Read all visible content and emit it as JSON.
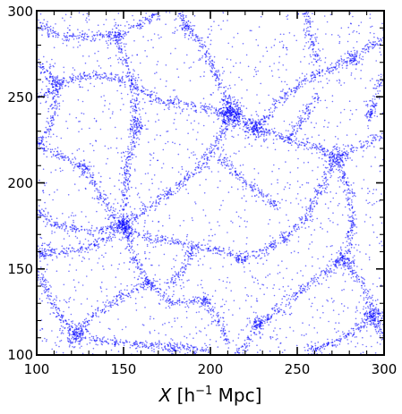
{
  "chart_data": {
    "type": "scatter",
    "xlabel": {
      "symbol": "X",
      "unit_prefix": "[h",
      "unit_exponent": "−1",
      "unit_suffix": " Mpc]"
    },
    "ylabel": "",
    "xlim": [
      100,
      300
    ],
    "ylim": [
      100,
      300
    ],
    "x_ticks": [
      "100",
      "150",
      "200",
      "250",
      "300"
    ],
    "y_ticks": [
      "100",
      "150",
      "200",
      "250",
      "300"
    ],
    "grid": false,
    "legend": "none",
    "marker_color": "#0000ff",
    "clusters": [
      {
        "x": 212,
        "y": 240,
        "sigma": 6,
        "weight": 260
      },
      {
        "x": 226,
        "y": 232,
        "sigma": 5,
        "weight": 120
      },
      {
        "x": 150,
        "y": 175,
        "sigma": 5,
        "weight": 110
      },
      {
        "x": 273,
        "y": 215,
        "sigma": 5,
        "weight": 80
      },
      {
        "x": 294,
        "y": 122,
        "sigma": 6,
        "weight": 120
      },
      {
        "x": 277,
        "y": 156,
        "sigma": 5,
        "weight": 70
      },
      {
        "x": 122,
        "y": 112,
        "sigma": 6,
        "weight": 110
      },
      {
        "x": 228,
        "y": 118,
        "sigma": 4,
        "weight": 60
      },
      {
        "x": 112,
        "y": 258,
        "sigma": 4,
        "weight": 50
      },
      {
        "x": 282,
        "y": 272,
        "sigma": 4,
        "weight": 50
      },
      {
        "x": 158,
        "y": 232,
        "sigma": 4,
        "weight": 50
      },
      {
        "x": 186,
        "y": 291,
        "sigma": 3,
        "weight": 35
      },
      {
        "x": 106,
        "y": 160,
        "sigma": 4,
        "weight": 40
      },
      {
        "x": 146,
        "y": 286,
        "sigma": 4,
        "weight": 40
      },
      {
        "x": 197,
        "y": 132,
        "sigma": 3,
        "weight": 30
      },
      {
        "x": 128,
        "y": 208,
        "sigma": 3,
        "weight": 30
      },
      {
        "x": 179,
        "y": 104,
        "sigma": 3,
        "weight": 30
      },
      {
        "x": 258,
        "y": 103,
        "sigma": 3,
        "weight": 25
      },
      {
        "x": 165,
        "y": 142,
        "sigma": 3,
        "weight": 30
      },
      {
        "x": 243,
        "y": 168,
        "sigma": 3,
        "weight": 20
      },
      {
        "x": 218,
        "y": 156,
        "sigma": 3,
        "weight": 25
      },
      {
        "x": 292,
        "y": 238,
        "sigma": 3,
        "weight": 25
      }
    ],
    "filaments": [
      [
        [
          100,
          250
        ],
        [
          115,
          258
        ],
        [
          128,
          262
        ],
        [
          145,
          262
        ],
        [
          158,
          255
        ],
        [
          170,
          248
        ]
      ],
      [
        [
          170,
          248
        ],
        [
          190,
          245
        ],
        [
          212,
          240
        ],
        [
          226,
          232
        ],
        [
          245,
          225
        ]
      ],
      [
        [
          212,
          240
        ],
        [
          205,
          260
        ],
        [
          195,
          280
        ],
        [
          186,
          291
        ],
        [
          183,
          300
        ]
      ],
      [
        [
          226,
          232
        ],
        [
          240,
          248
        ],
        [
          258,
          262
        ],
        [
          282,
          272
        ],
        [
          300,
          285
        ]
      ],
      [
        [
          245,
          225
        ],
        [
          262,
          220
        ],
        [
          273,
          215
        ],
        [
          288,
          222
        ],
        [
          300,
          228
        ]
      ],
      [
        [
          212,
          240
        ],
        [
          205,
          225
        ],
        [
          195,
          210
        ],
        [
          180,
          197
        ],
        [
          163,
          185
        ],
        [
          150,
          175
        ]
      ],
      [
        [
          150,
          175
        ],
        [
          138,
          190
        ],
        [
          128,
          208
        ],
        [
          115,
          215
        ],
        [
          100,
          222
        ]
      ],
      [
        [
          150,
          175
        ],
        [
          155,
          160
        ],
        [
          160,
          148
        ],
        [
          165,
          142
        ],
        [
          178,
          130
        ],
        [
          197,
          132
        ]
      ],
      [
        [
          150,
          175
        ],
        [
          135,
          165
        ],
        [
          118,
          160
        ],
        [
          106,
          160
        ],
        [
          100,
          158
        ]
      ],
      [
        [
          150,
          175
        ],
        [
          165,
          168
        ],
        [
          185,
          165
        ],
        [
          200,
          162
        ],
        [
          218,
          156
        ]
      ],
      [
        [
          218,
          156
        ],
        [
          230,
          160
        ],
        [
          243,
          168
        ],
        [
          255,
          180
        ],
        [
          265,
          200
        ],
        [
          273,
          215
        ]
      ],
      [
        [
          273,
          215
        ],
        [
          280,
          195
        ],
        [
          282,
          175
        ],
        [
          277,
          156
        ]
      ],
      [
        [
          277,
          156
        ],
        [
          288,
          140
        ],
        [
          294,
          122
        ],
        [
          300,
          110
        ]
      ],
      [
        [
          277,
          156
        ],
        [
          262,
          145
        ],
        [
          250,
          135
        ],
        [
          238,
          126
        ],
        [
          228,
          118
        ]
      ],
      [
        [
          228,
          118
        ],
        [
          222,
          108
        ],
        [
          215,
          100
        ]
      ],
      [
        [
          294,
          122
        ],
        [
          280,
          112
        ],
        [
          268,
          106
        ],
        [
          258,
          103
        ]
      ],
      [
        [
          122,
          112
        ],
        [
          135,
          125
        ],
        [
          150,
          135
        ],
        [
          165,
          142
        ]
      ],
      [
        [
          122,
          112
        ],
        [
          112,
          125
        ],
        [
          105,
          140
        ],
        [
          100,
          150
        ]
      ],
      [
        [
          122,
          112
        ],
        [
          140,
          108
        ],
        [
          160,
          106
        ],
        [
          179,
          104
        ],
        [
          200,
          103
        ]
      ],
      [
        [
          100,
          185
        ],
        [
          112,
          175
        ],
        [
          130,
          172
        ],
        [
          150,
          175
        ]
      ],
      [
        [
          146,
          286
        ],
        [
          150,
          272
        ],
        [
          156,
          258
        ],
        [
          158,
          232
        ],
        [
          152,
          210
        ],
        [
          150,
          175
        ]
      ],
      [
        [
          100,
          295
        ],
        [
          112,
          285
        ],
        [
          128,
          285
        ],
        [
          146,
          286
        ],
        [
          165,
          295
        ],
        [
          172,
          300
        ]
      ],
      [
        [
          112,
          258
        ],
        [
          110,
          240
        ],
        [
          106,
          228
        ],
        [
          100,
          222
        ]
      ],
      [
        [
          100,
          270
        ],
        [
          112,
          258
        ]
      ],
      [
        [
          245,
          225
        ],
        [
          255,
          240
        ],
        [
          262,
          252
        ]
      ],
      [
        [
          292,
          238
        ],
        [
          296,
          255
        ],
        [
          300,
          262
        ]
      ],
      [
        [
          197,
          132
        ],
        [
          205,
          120
        ],
        [
          210,
          108
        ]
      ],
      [
        [
          240,
          185
        ],
        [
          228,
          195
        ],
        [
          215,
          205
        ],
        [
          205,
          215
        ]
      ],
      [
        [
          255,
          300
        ],
        [
          258,
          285
        ],
        [
          262,
          270
        ]
      ],
      [
        [
          190,
          165
        ],
        [
          185,
          150
        ],
        [
          175,
          140
        ]
      ]
    ],
    "noise": 1600
  }
}
